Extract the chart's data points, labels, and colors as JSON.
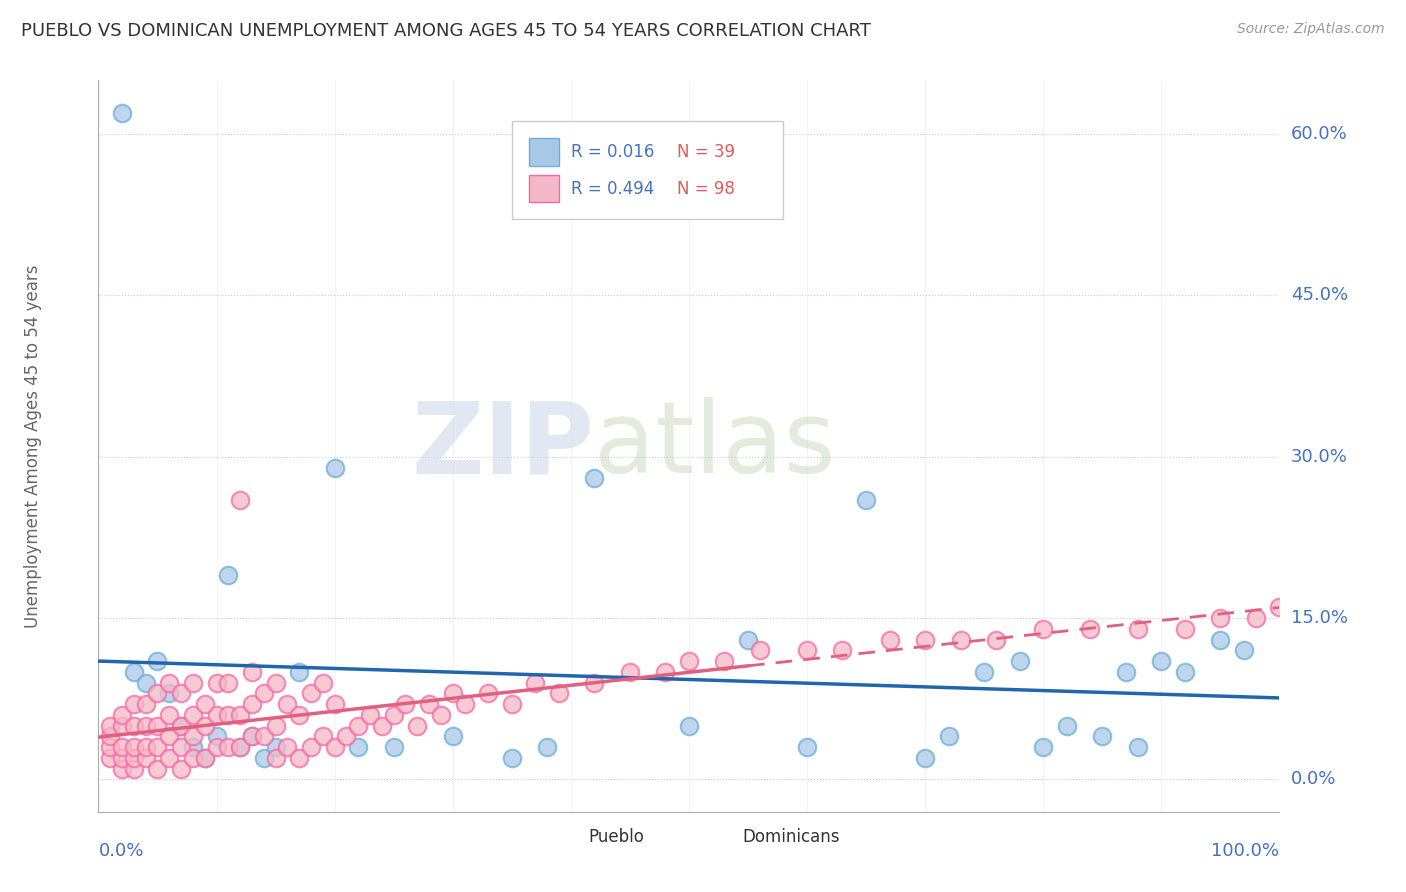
{
  "title": "PUEBLO VS DOMINICAN UNEMPLOYMENT AMONG AGES 45 TO 54 YEARS CORRELATION CHART",
  "source": "Source: ZipAtlas.com",
  "ylabel": "Unemployment Among Ages 45 to 54 years",
  "xlim": [
    0,
    100
  ],
  "ylim": [
    -3,
    65
  ],
  "ytick_vals": [
    0,
    15,
    30,
    45,
    60
  ],
  "ytick_labels": [
    "0.0%",
    "15.0%",
    "30.0%",
    "45.0%",
    "60.0%"
  ],
  "watermark_zip": "ZIP",
  "watermark_atlas": "atlas",
  "pueblo_R": "0.016",
  "pueblo_N": "39",
  "dominican_R": "0.494",
  "dominican_N": "98",
  "pueblo_color": "#a8c8e8",
  "dominican_color": "#f4b8c8",
  "pueblo_edge_color": "#6baed6",
  "dominican_edge_color": "#f768a1",
  "pueblo_line_color": "#2166ac",
  "dominican_line_color": "#e0607e",
  "legend_text_color": "#4472c4",
  "legend_n_color": "#e05c5c",
  "axis_label_color": "#4472c4",
  "pueblo_x": [
    2,
    3,
    4,
    5,
    6,
    7,
    8,
    9,
    10,
    11,
    12,
    13,
    14,
    15,
    17,
    20,
    22,
    25,
    30,
    35,
    38,
    42,
    50,
    55,
    60,
    65,
    70,
    72,
    75,
    78,
    80,
    82,
    85,
    87,
    88,
    90,
    92,
    95,
    97
  ],
  "pueblo_y": [
    62,
    10,
    9,
    11,
    8,
    5,
    3,
    2,
    4,
    19,
    3,
    4,
    2,
    3,
    10,
    29,
    3,
    3,
    4,
    2,
    3,
    28,
    5,
    13,
    3,
    26,
    2,
    4,
    10,
    11,
    3,
    5,
    4,
    10,
    3,
    11,
    10,
    13,
    12
  ],
  "dom_x": [
    1,
    1,
    1,
    1,
    2,
    2,
    2,
    2,
    2,
    3,
    3,
    3,
    3,
    3,
    4,
    4,
    4,
    4,
    5,
    5,
    5,
    5,
    6,
    6,
    6,
    6,
    7,
    7,
    7,
    7,
    8,
    8,
    8,
    8,
    9,
    9,
    9,
    10,
    10,
    10,
    11,
    11,
    11,
    12,
    12,
    12,
    13,
    13,
    13,
    14,
    14,
    15,
    15,
    15,
    16,
    16,
    17,
    17,
    18,
    18,
    19,
    19,
    20,
    20,
    21,
    22,
    23,
    24,
    25,
    26,
    27,
    28,
    29,
    30,
    31,
    33,
    35,
    37,
    39,
    42,
    45,
    48,
    50,
    53,
    56,
    60,
    63,
    67,
    70,
    73,
    76,
    80,
    84,
    88,
    92,
    95,
    98,
    100
  ],
  "dom_y": [
    2,
    3,
    4,
    5,
    1,
    2,
    3,
    5,
    6,
    1,
    2,
    3,
    5,
    7,
    2,
    3,
    5,
    7,
    1,
    3,
    5,
    8,
    2,
    4,
    6,
    9,
    1,
    3,
    5,
    8,
    2,
    4,
    6,
    9,
    2,
    5,
    7,
    3,
    6,
    9,
    3,
    6,
    9,
    3,
    6,
    26,
    4,
    7,
    10,
    4,
    8,
    2,
    5,
    9,
    3,
    7,
    2,
    6,
    3,
    8,
    4,
    9,
    3,
    7,
    4,
    5,
    6,
    5,
    6,
    7,
    5,
    7,
    6,
    8,
    7,
    8,
    7,
    9,
    8,
    9,
    10,
    10,
    11,
    11,
    12,
    12,
    12,
    13,
    13,
    13,
    13,
    14,
    14,
    14,
    14,
    15,
    15,
    16
  ]
}
